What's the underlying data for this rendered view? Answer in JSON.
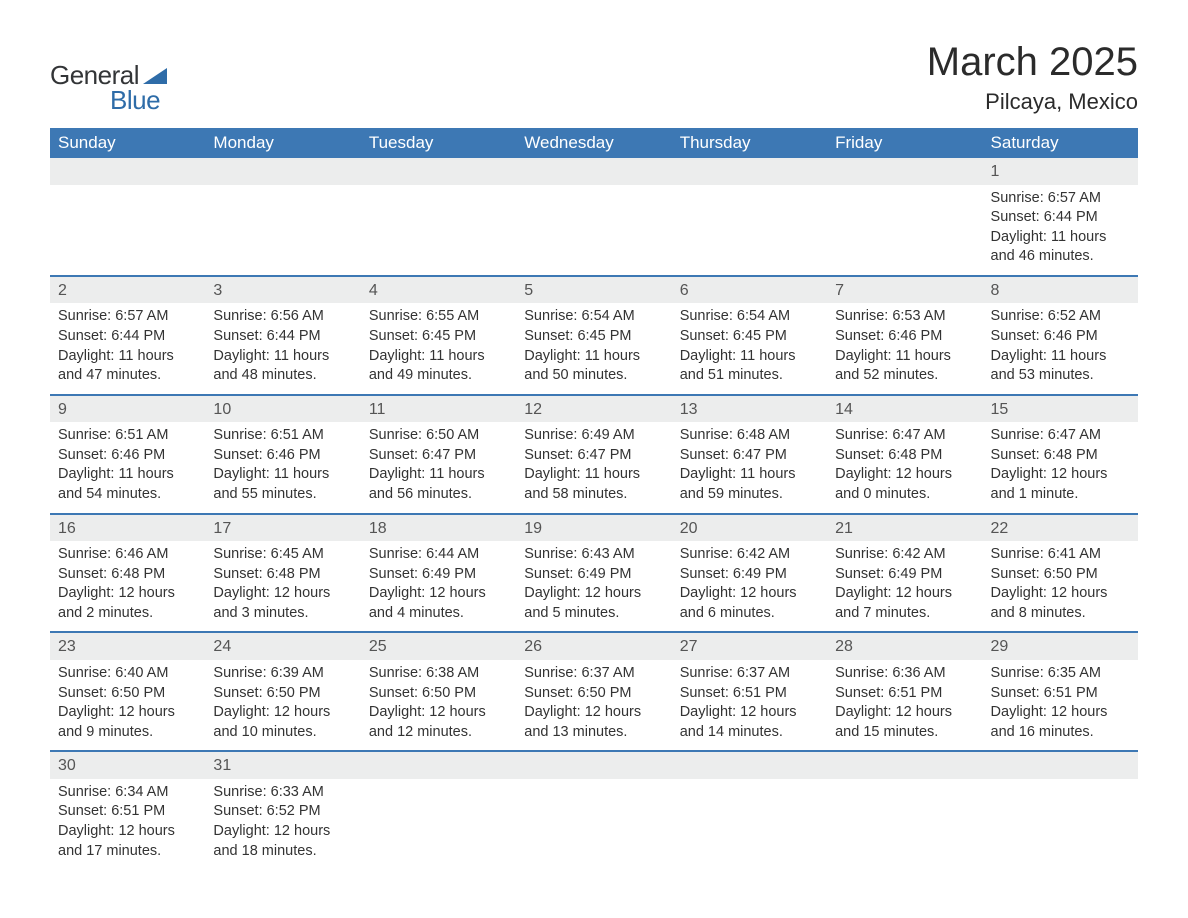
{
  "logo": {
    "text1": "General",
    "text2": "Blue"
  },
  "title": "March 2025",
  "location": "Pilcaya, Mexico",
  "colors": {
    "header_bg": "#3d78b4",
    "header_text": "#ffffff",
    "daynum_bg": "#eceded",
    "row_border": "#3d78b4",
    "body_text": "#333333",
    "logo_blue": "#2e6ca8",
    "logo_dark": "#333537",
    "page_bg": "#ffffff"
  },
  "fonts": {
    "title_size_pt": 30,
    "location_size_pt": 17,
    "header_size_pt": 13,
    "daynum_size_pt": 12,
    "body_size_pt": 11
  },
  "weekdays": [
    "Sunday",
    "Monday",
    "Tuesday",
    "Wednesday",
    "Thursday",
    "Friday",
    "Saturday"
  ],
  "weeks": [
    [
      null,
      null,
      null,
      null,
      null,
      null,
      {
        "n": "1",
        "sr": "Sunrise: 6:57 AM",
        "ss": "Sunset: 6:44 PM",
        "dl": "Daylight: 11 hours and 46 minutes."
      }
    ],
    [
      {
        "n": "2",
        "sr": "Sunrise: 6:57 AM",
        "ss": "Sunset: 6:44 PM",
        "dl": "Daylight: 11 hours and 47 minutes."
      },
      {
        "n": "3",
        "sr": "Sunrise: 6:56 AM",
        "ss": "Sunset: 6:44 PM",
        "dl": "Daylight: 11 hours and 48 minutes."
      },
      {
        "n": "4",
        "sr": "Sunrise: 6:55 AM",
        "ss": "Sunset: 6:45 PM",
        "dl": "Daylight: 11 hours and 49 minutes."
      },
      {
        "n": "5",
        "sr": "Sunrise: 6:54 AM",
        "ss": "Sunset: 6:45 PM",
        "dl": "Daylight: 11 hours and 50 minutes."
      },
      {
        "n": "6",
        "sr": "Sunrise: 6:54 AM",
        "ss": "Sunset: 6:45 PM",
        "dl": "Daylight: 11 hours and 51 minutes."
      },
      {
        "n": "7",
        "sr": "Sunrise: 6:53 AM",
        "ss": "Sunset: 6:46 PM",
        "dl": "Daylight: 11 hours and 52 minutes."
      },
      {
        "n": "8",
        "sr": "Sunrise: 6:52 AM",
        "ss": "Sunset: 6:46 PM",
        "dl": "Daylight: 11 hours and 53 minutes."
      }
    ],
    [
      {
        "n": "9",
        "sr": "Sunrise: 6:51 AM",
        "ss": "Sunset: 6:46 PM",
        "dl": "Daylight: 11 hours and 54 minutes."
      },
      {
        "n": "10",
        "sr": "Sunrise: 6:51 AM",
        "ss": "Sunset: 6:46 PM",
        "dl": "Daylight: 11 hours and 55 minutes."
      },
      {
        "n": "11",
        "sr": "Sunrise: 6:50 AM",
        "ss": "Sunset: 6:47 PM",
        "dl": "Daylight: 11 hours and 56 minutes."
      },
      {
        "n": "12",
        "sr": "Sunrise: 6:49 AM",
        "ss": "Sunset: 6:47 PM",
        "dl": "Daylight: 11 hours and 58 minutes."
      },
      {
        "n": "13",
        "sr": "Sunrise: 6:48 AM",
        "ss": "Sunset: 6:47 PM",
        "dl": "Daylight: 11 hours and 59 minutes."
      },
      {
        "n": "14",
        "sr": "Sunrise: 6:47 AM",
        "ss": "Sunset: 6:48 PM",
        "dl": "Daylight: 12 hours and 0 minutes."
      },
      {
        "n": "15",
        "sr": "Sunrise: 6:47 AM",
        "ss": "Sunset: 6:48 PM",
        "dl": "Daylight: 12 hours and 1 minute."
      }
    ],
    [
      {
        "n": "16",
        "sr": "Sunrise: 6:46 AM",
        "ss": "Sunset: 6:48 PM",
        "dl": "Daylight: 12 hours and 2 minutes."
      },
      {
        "n": "17",
        "sr": "Sunrise: 6:45 AM",
        "ss": "Sunset: 6:48 PM",
        "dl": "Daylight: 12 hours and 3 minutes."
      },
      {
        "n": "18",
        "sr": "Sunrise: 6:44 AM",
        "ss": "Sunset: 6:49 PM",
        "dl": "Daylight: 12 hours and 4 minutes."
      },
      {
        "n": "19",
        "sr": "Sunrise: 6:43 AM",
        "ss": "Sunset: 6:49 PM",
        "dl": "Daylight: 12 hours and 5 minutes."
      },
      {
        "n": "20",
        "sr": "Sunrise: 6:42 AM",
        "ss": "Sunset: 6:49 PM",
        "dl": "Daylight: 12 hours and 6 minutes."
      },
      {
        "n": "21",
        "sr": "Sunrise: 6:42 AM",
        "ss": "Sunset: 6:49 PM",
        "dl": "Daylight: 12 hours and 7 minutes."
      },
      {
        "n": "22",
        "sr": "Sunrise: 6:41 AM",
        "ss": "Sunset: 6:50 PM",
        "dl": "Daylight: 12 hours and 8 minutes."
      }
    ],
    [
      {
        "n": "23",
        "sr": "Sunrise: 6:40 AM",
        "ss": "Sunset: 6:50 PM",
        "dl": "Daylight: 12 hours and 9 minutes."
      },
      {
        "n": "24",
        "sr": "Sunrise: 6:39 AM",
        "ss": "Sunset: 6:50 PM",
        "dl": "Daylight: 12 hours and 10 minutes."
      },
      {
        "n": "25",
        "sr": "Sunrise: 6:38 AM",
        "ss": "Sunset: 6:50 PM",
        "dl": "Daylight: 12 hours and 12 minutes."
      },
      {
        "n": "26",
        "sr": "Sunrise: 6:37 AM",
        "ss": "Sunset: 6:50 PM",
        "dl": "Daylight: 12 hours and 13 minutes."
      },
      {
        "n": "27",
        "sr": "Sunrise: 6:37 AM",
        "ss": "Sunset: 6:51 PM",
        "dl": "Daylight: 12 hours and 14 minutes."
      },
      {
        "n": "28",
        "sr": "Sunrise: 6:36 AM",
        "ss": "Sunset: 6:51 PM",
        "dl": "Daylight: 12 hours and 15 minutes."
      },
      {
        "n": "29",
        "sr": "Sunrise: 6:35 AM",
        "ss": "Sunset: 6:51 PM",
        "dl": "Daylight: 12 hours and 16 minutes."
      }
    ],
    [
      {
        "n": "30",
        "sr": "Sunrise: 6:34 AM",
        "ss": "Sunset: 6:51 PM",
        "dl": "Daylight: 12 hours and 17 minutes."
      },
      {
        "n": "31",
        "sr": "Sunrise: 6:33 AM",
        "ss": "Sunset: 6:52 PM",
        "dl": "Daylight: 12 hours and 18 minutes."
      },
      null,
      null,
      null,
      null,
      null
    ]
  ]
}
